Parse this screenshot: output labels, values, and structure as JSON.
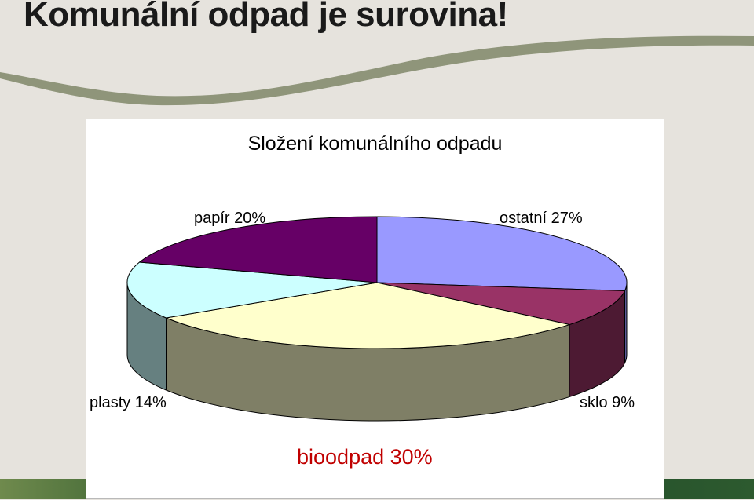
{
  "slide": {
    "title": "Komunální odpad je surovina!"
  },
  "colors": {
    "background": "#e6e3dd",
    "swoosh": "#8f957a",
    "bottom_band": "#2f5a2c"
  },
  "chart_data": {
    "type": "pie",
    "title": "Složení komunálního odpadu",
    "three_d": true,
    "slices": [
      {
        "name": "ostatní",
        "value": 27,
        "label": "ostatní 27%",
        "top_color": "#9999ff",
        "side_color": "#5b5b99"
      },
      {
        "name": "sklo",
        "value": 9,
        "label": "sklo 9%",
        "top_color": "#993366",
        "side_color": "#4d1a33"
      },
      {
        "name": "bioodpad",
        "value": 30,
        "label": "bioodpad 30%",
        "top_color": "#ffffcc",
        "side_color": "#7f7f66"
      },
      {
        "name": "plasty",
        "value": 14,
        "label": "plasty 14%",
        "top_color": "#ccffff",
        "side_color": "#668080"
      },
      {
        "name": "papír",
        "value": 20,
        "label": "papír 20%",
        "top_color": "#660066",
        "side_color": "#330033"
      }
    ]
  }
}
